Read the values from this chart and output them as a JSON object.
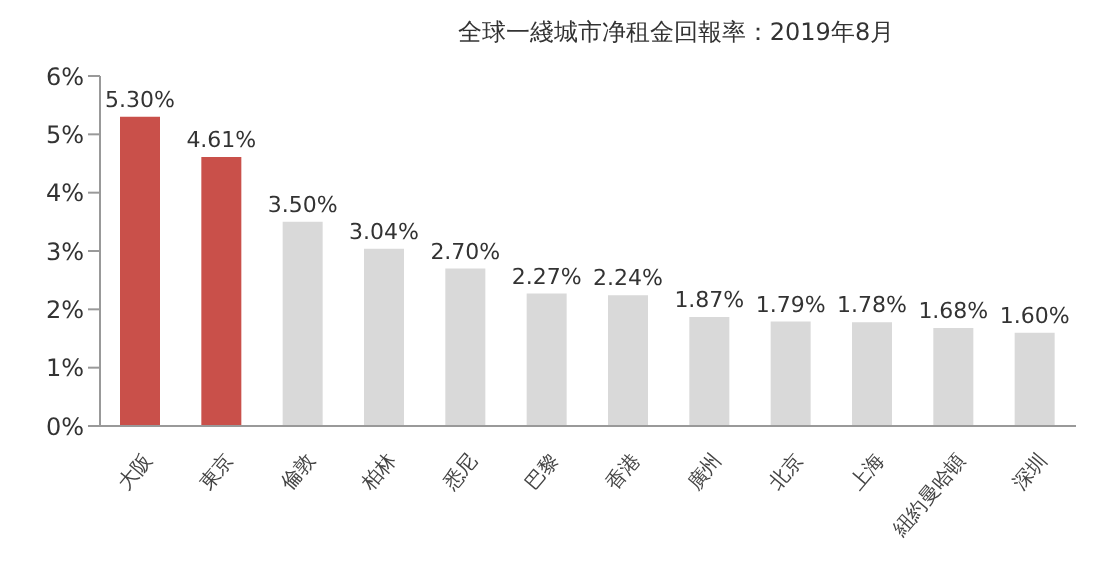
{
  "chart_data": {
    "type": "bar",
    "title": "全球一綫城市净租金回報率：2019年8月",
    "categories": [
      "大阪",
      "東京",
      "倫敦",
      "柏林",
      "悉尼",
      "巴黎",
      "香港",
      "廣州",
      "北京",
      "上海",
      "紐約曼哈頓",
      "深圳"
    ],
    "values": [
      5.3,
      4.61,
      3.5,
      3.04,
      2.7,
      2.27,
      2.24,
      1.87,
      1.79,
      1.78,
      1.68,
      1.6
    ],
    "value_labels": [
      "5.30%",
      "4.61%",
      "3.50%",
      "3.04%",
      "2.70%",
      "2.27%",
      "2.24%",
      "1.87%",
      "1.79%",
      "1.78%",
      "1.68%",
      "1.60%"
    ],
    "colors": [
      "#c9504a",
      "#c9504a",
      "#d9d9d9",
      "#d9d9d9",
      "#d9d9d9",
      "#d9d9d9",
      "#d9d9d9",
      "#d9d9d9",
      "#d9d9d9",
      "#d9d9d9",
      "#d9d9d9",
      "#d9d9d9"
    ],
    "ylim": [
      0,
      6
    ],
    "yticks": [
      {
        "value": 0,
        "label": "0%"
      },
      {
        "value": 1,
        "label": "1%"
      },
      {
        "value": 2,
        "label": "2%"
      },
      {
        "value": 3,
        "label": "3%"
      },
      {
        "value": 4,
        "label": "4%"
      },
      {
        "value": 5,
        "label": "5%"
      },
      {
        "value": 6,
        "label": "6%"
      }
    ],
    "grid": false,
    "legend": false
  }
}
